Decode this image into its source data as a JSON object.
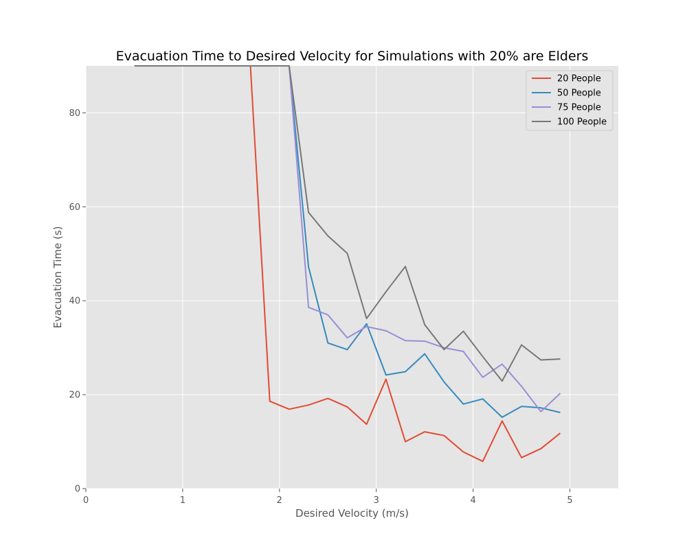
{
  "chart_data": {
    "type": "line",
    "title": "Evacuation Time to Desired Velocity for Simulations with 20% are Elders",
    "xlabel": "Desired Velocity (m/s)",
    "ylabel": "Evacuation Time (s)",
    "xlim": [
      0,
      5.5
    ],
    "ylim": [
      0,
      90
    ],
    "xticks": [
      0,
      1,
      2,
      3,
      4,
      5
    ],
    "yticks": [
      0,
      20,
      40,
      60,
      80
    ],
    "xtick_labels": [
      "0",
      "1",
      "2",
      "3",
      "4",
      "5"
    ],
    "ytick_labels": [
      "0",
      "20",
      "40",
      "60",
      "80"
    ],
    "grid": true,
    "legend_position": "top-right",
    "x": [
      0.5,
      0.7,
      0.9,
      1.1,
      1.3,
      1.5,
      1.7,
      1.9,
      2.1,
      2.3,
      2.5,
      2.7,
      2.9,
      3.1,
      3.3,
      3.5,
      3.7,
      3.9,
      4.1,
      4.3,
      4.5,
      4.7,
      4.9
    ],
    "series": [
      {
        "name": "20 People",
        "color": "#E24A33",
        "values": [
          90,
          90,
          90,
          90,
          90,
          90,
          90,
          18.6,
          16.9,
          17.8,
          19.2,
          17.4,
          13.7,
          23.3,
          10.0,
          12.1,
          11.3,
          7.8,
          5.8,
          14.4,
          6.6,
          8.5,
          11.8
        ]
      },
      {
        "name": "50 People",
        "color": "#348ABD",
        "values": [
          90,
          90,
          90,
          90,
          90,
          90,
          90,
          90,
          90,
          47.2,
          31.0,
          29.6,
          35.1,
          24.2,
          24.9,
          28.7,
          22.7,
          18.0,
          19.1,
          15.2,
          17.5,
          17.2,
          16.2
        ]
      },
      {
        "name": "75 People",
        "color": "#988ED5",
        "values": [
          90,
          90,
          90,
          90,
          90,
          90,
          90,
          90,
          90,
          38.6,
          37.0,
          32.1,
          34.5,
          33.6,
          31.5,
          31.4,
          30.0,
          29.2,
          23.7,
          26.5,
          21.8,
          16.4,
          20.3
        ]
      },
      {
        "name": "100 People",
        "color": "#777777",
        "values": [
          90,
          90,
          90,
          90,
          90,
          90,
          90,
          90,
          90,
          58.8,
          53.8,
          50.1,
          36.2,
          41.9,
          47.3,
          34.9,
          29.6,
          33.5,
          28.1,
          22.9,
          30.6,
          27.4,
          27.6
        ]
      }
    ]
  }
}
